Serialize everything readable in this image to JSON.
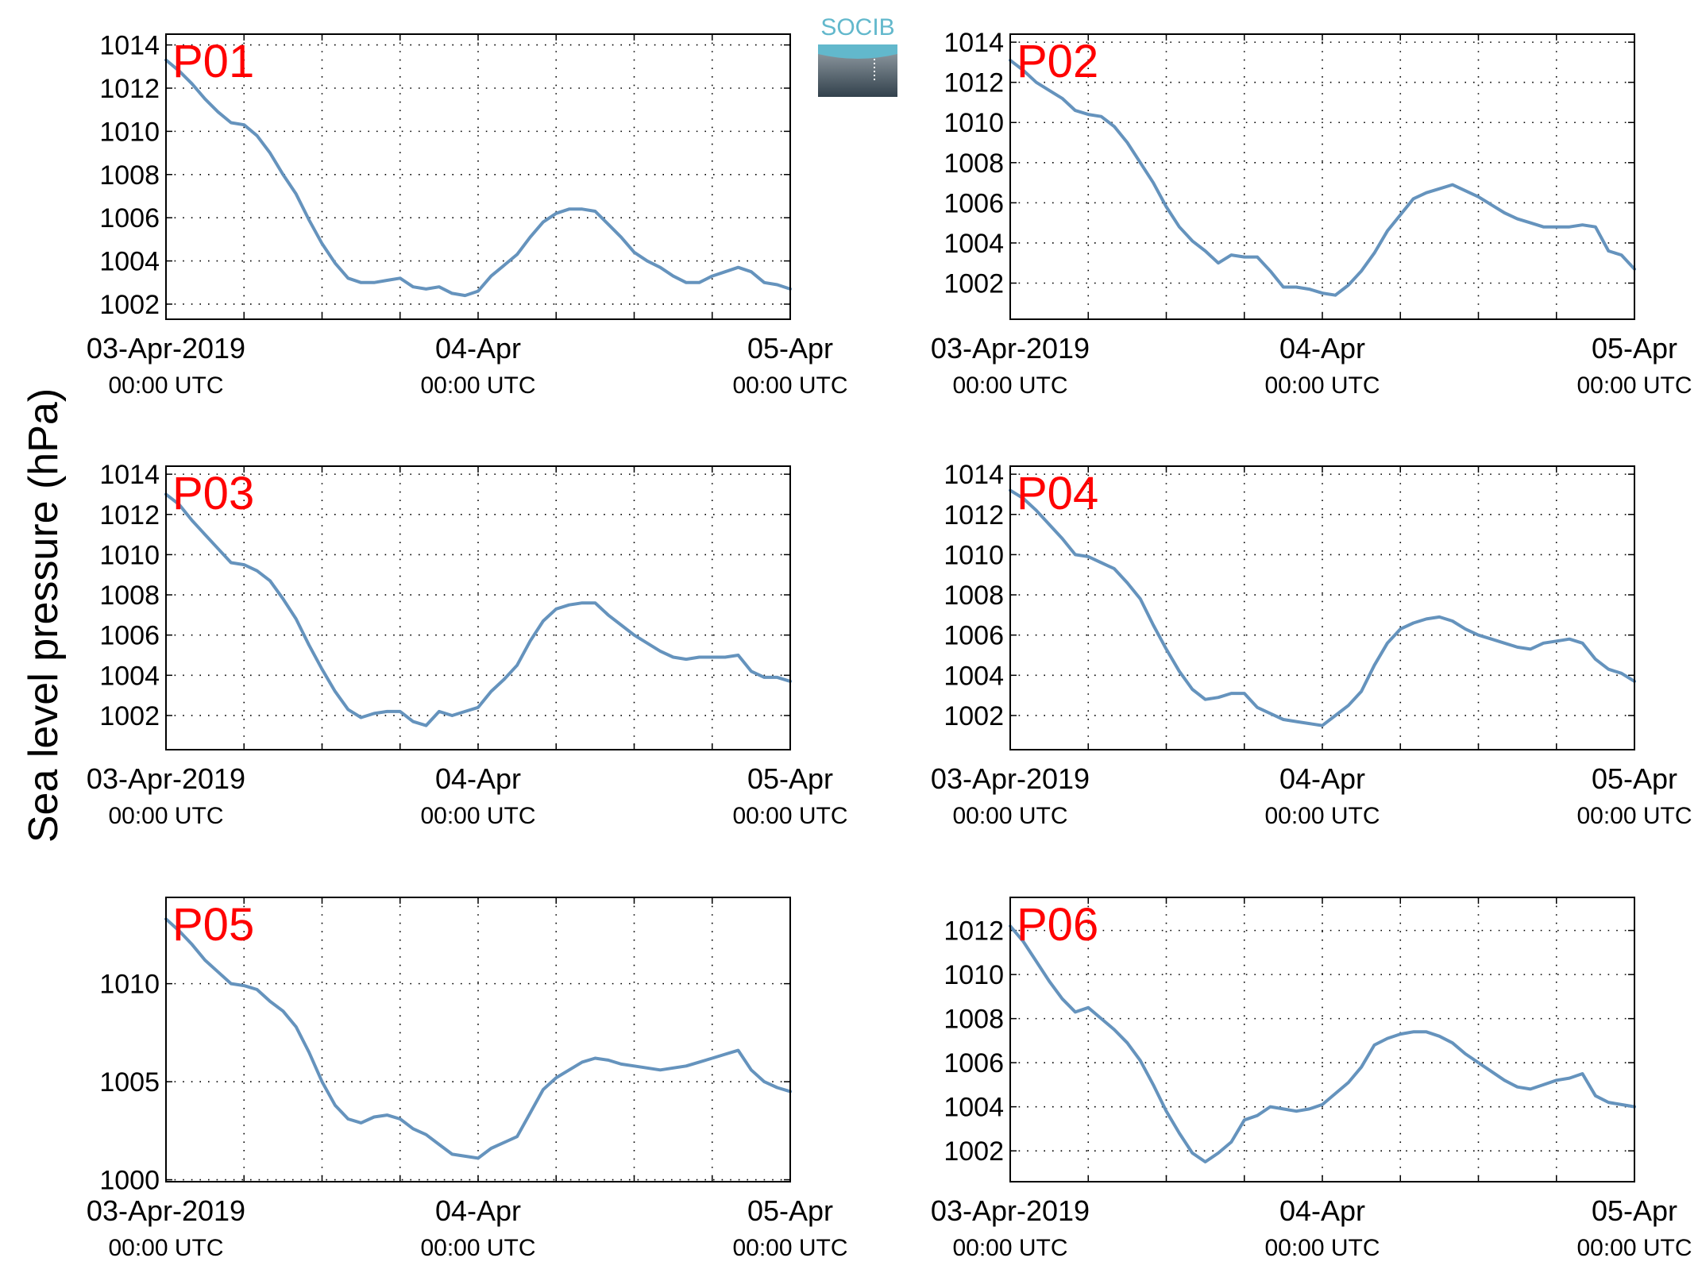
{
  "figure": {
    "ylabel": "Sea level pressure (hPa)",
    "logo_text": "SOCIB",
    "colors": {
      "line": "#6593bd",
      "panel_label": "#ff0000",
      "axis": "#000000",
      "grid": "#000000",
      "logo_top": "#62b8cc",
      "logo_bottom": "#32414c",
      "logo_text": "#62b8cc"
    }
  },
  "chart_data": [
    {
      "type": "line",
      "title": "P01",
      "ylabel": "Sea level pressure (hPa)",
      "xlim_hours": [
        0,
        48
      ],
      "x_tick_labels": [
        {
          "date": "03-Apr-2019",
          "time": "00:00 UTC"
        },
        {
          "date": "04-Apr",
          "time": "00:00 UTC"
        },
        {
          "date": "05-Apr",
          "time": "00:00 UTC"
        }
      ],
      "ylim": [
        1001.3,
        1014.5
      ],
      "yticks": [
        1002,
        1004,
        1006,
        1008,
        1010,
        1012,
        1014
      ],
      "grid": true,
      "series": [
        {
          "x": [
            0,
            1,
            2,
            3,
            4,
            5,
            6,
            7,
            8,
            9,
            10,
            11,
            12,
            13,
            14,
            15,
            16,
            17,
            18,
            19,
            20,
            21,
            22,
            23,
            24,
            25,
            26,
            27,
            28,
            29,
            30,
            31,
            32,
            33,
            34,
            35,
            36,
            37,
            38,
            39,
            40,
            41,
            42,
            43,
            44,
            45,
            46,
            47,
            48
          ],
          "values": [
            1013.3,
            1012.8,
            1012.2,
            1011.5,
            1010.9,
            1010.4,
            1010.3,
            1009.8,
            1009.0,
            1008.0,
            1007.1,
            1005.9,
            1004.8,
            1003.9,
            1003.2,
            1003.0,
            1003.0,
            1003.1,
            1003.2,
            1002.8,
            1002.7,
            1002.8,
            1002.5,
            1002.4,
            1002.6,
            1003.3,
            1003.8,
            1004.3,
            1005.1,
            1005.8,
            1006.2,
            1006.4,
            1006.4,
            1006.3,
            1005.7,
            1005.1,
            1004.4,
            1004.0,
            1003.7,
            1003.3,
            1003.0,
            1003.0,
            1003.3,
            1003.5,
            1003.7,
            1003.5,
            1003.0,
            1002.9,
            1002.7
          ]
        }
      ]
    },
    {
      "type": "line",
      "title": "P02",
      "ylabel": "Sea level pressure (hPa)",
      "xlim_hours": [
        0,
        48
      ],
      "x_tick_labels": [
        {
          "date": "03-Apr-2019",
          "time": "00:00 UTC"
        },
        {
          "date": "04-Apr",
          "time": "00:00 UTC"
        },
        {
          "date": "05-Apr",
          "time": "00:00 UTC"
        }
      ],
      "ylim": [
        1000.2,
        1014.4
      ],
      "yticks": [
        1002,
        1004,
        1006,
        1008,
        1010,
        1012,
        1014
      ],
      "grid": true,
      "series": [
        {
          "x": [
            0,
            1,
            2,
            3,
            4,
            5,
            6,
            7,
            8,
            9,
            10,
            11,
            12,
            13,
            14,
            15,
            16,
            17,
            18,
            19,
            20,
            21,
            22,
            23,
            24,
            25,
            26,
            27,
            28,
            29,
            30,
            31,
            32,
            33,
            34,
            35,
            36,
            37,
            38,
            39,
            40,
            41,
            42,
            43,
            44,
            45,
            46,
            47,
            48
          ],
          "values": [
            1013.1,
            1012.6,
            1012.0,
            1011.6,
            1011.2,
            1010.6,
            1010.4,
            1010.3,
            1009.8,
            1009.0,
            1008.0,
            1007.0,
            1005.8,
            1004.8,
            1004.1,
            1003.6,
            1003.0,
            1003.4,
            1003.3,
            1003.3,
            1002.6,
            1001.8,
            1001.8,
            1001.7,
            1001.5,
            1001.4,
            1001.9,
            1002.6,
            1003.5,
            1004.6,
            1005.4,
            1006.2,
            1006.5,
            1006.7,
            1006.9,
            1006.6,
            1006.3,
            1005.9,
            1005.5,
            1005.2,
            1005.0,
            1004.8,
            1004.8,
            1004.8,
            1004.9,
            1004.8,
            1003.6,
            1003.4,
            1002.7
          ]
        }
      ]
    },
    {
      "type": "line",
      "title": "P03",
      "ylabel": "Sea level pressure (hPa)",
      "xlim_hours": [
        0,
        48
      ],
      "x_tick_labels": [
        {
          "date": "03-Apr-2019",
          "time": "00:00 UTC"
        },
        {
          "date": "04-Apr",
          "time": "00:00 UTC"
        },
        {
          "date": "05-Apr",
          "time": "00:00 UTC"
        }
      ],
      "ylim": [
        1000.3,
        1014.4
      ],
      "yticks": [
        1002,
        1004,
        1006,
        1008,
        1010,
        1012,
        1014
      ],
      "grid": true,
      "series": [
        {
          "x": [
            0,
            1,
            2,
            3,
            4,
            5,
            6,
            7,
            8,
            9,
            10,
            11,
            12,
            13,
            14,
            15,
            16,
            17,
            18,
            19,
            20,
            21,
            22,
            23,
            24,
            25,
            26,
            27,
            28,
            29,
            30,
            31,
            32,
            33,
            34,
            35,
            36,
            37,
            38,
            39,
            40,
            41,
            42,
            43,
            44,
            45,
            46,
            47,
            48
          ],
          "values": [
            1013.0,
            1012.5,
            1011.7,
            1011.0,
            1010.3,
            1009.6,
            1009.5,
            1009.2,
            1008.7,
            1007.8,
            1006.8,
            1005.5,
            1004.3,
            1003.2,
            1002.3,
            1001.9,
            1002.1,
            1002.2,
            1002.2,
            1001.7,
            1001.5,
            1002.2,
            1002.0,
            1002.2,
            1002.4,
            1003.2,
            1003.8,
            1004.5,
            1005.7,
            1006.7,
            1007.3,
            1007.5,
            1007.6,
            1007.6,
            1007.0,
            1006.5,
            1006.0,
            1005.6,
            1005.2,
            1004.9,
            1004.8,
            1004.9,
            1004.9,
            1004.9,
            1005.0,
            1004.2,
            1003.9,
            1003.9,
            1003.7
          ]
        }
      ]
    },
    {
      "type": "line",
      "title": "P04",
      "ylabel": "Sea level pressure (hPa)",
      "xlim_hours": [
        0,
        48
      ],
      "x_tick_labels": [
        {
          "date": "03-Apr-2019",
          "time": "00:00 UTC"
        },
        {
          "date": "04-Apr",
          "time": "00:00 UTC"
        },
        {
          "date": "05-Apr",
          "time": "00:00 UTC"
        }
      ],
      "ylim": [
        1000.3,
        1014.4
      ],
      "yticks": [
        1002,
        1004,
        1006,
        1008,
        1010,
        1012,
        1014
      ],
      "grid": true,
      "series": [
        {
          "x": [
            0,
            1,
            2,
            3,
            4,
            5,
            6,
            7,
            8,
            9,
            10,
            11,
            12,
            13,
            14,
            15,
            16,
            17,
            18,
            19,
            20,
            21,
            22,
            23,
            24,
            25,
            26,
            27,
            28,
            29,
            30,
            31,
            32,
            33,
            34,
            35,
            36,
            37,
            38,
            39,
            40,
            41,
            42,
            43,
            44,
            45,
            46,
            47,
            48
          ],
          "values": [
            1013.2,
            1012.8,
            1012.2,
            1011.5,
            1010.8,
            1010.0,
            1009.9,
            1009.6,
            1009.3,
            1008.6,
            1007.8,
            1006.5,
            1005.3,
            1004.2,
            1003.3,
            1002.8,
            1002.9,
            1003.1,
            1003.1,
            1002.4,
            1002.1,
            1001.8,
            1001.7,
            1001.6,
            1001.5,
            1002.0,
            1002.5,
            1003.2,
            1004.5,
            1005.6,
            1006.3,
            1006.6,
            1006.8,
            1006.9,
            1006.7,
            1006.3,
            1006.0,
            1005.8,
            1005.6,
            1005.4,
            1005.3,
            1005.6,
            1005.7,
            1005.8,
            1005.6,
            1004.8,
            1004.3,
            1004.1,
            1003.7
          ]
        }
      ]
    },
    {
      "type": "line",
      "title": "P05",
      "ylabel": "Sea level pressure (hPa)",
      "xlim_hours": [
        0,
        48
      ],
      "x_tick_labels": [
        {
          "date": "03-Apr-2019",
          "time": "00:00 UTC"
        },
        {
          "date": "04-Apr",
          "time": "00:00 UTC"
        },
        {
          "date": "05-Apr",
          "time": "00:00 UTC"
        }
      ],
      "ylim": [
        999.9,
        1014.4
      ],
      "yticks": [
        1000,
        1005,
        1010
      ],
      "grid": true,
      "series": [
        {
          "x": [
            0,
            1,
            2,
            3,
            4,
            5,
            6,
            7,
            8,
            9,
            10,
            11,
            12,
            13,
            14,
            15,
            16,
            17,
            18,
            19,
            20,
            21,
            22,
            23,
            24,
            25,
            26,
            27,
            28,
            29,
            30,
            31,
            32,
            33,
            34,
            35,
            36,
            37,
            38,
            39,
            40,
            41,
            42,
            43,
            44,
            45,
            46,
            47,
            48
          ],
          "values": [
            1013.3,
            1012.7,
            1012.0,
            1011.2,
            1010.6,
            1010.0,
            1009.9,
            1009.7,
            1009.1,
            1008.6,
            1007.8,
            1006.5,
            1005.0,
            1003.8,
            1003.1,
            1002.9,
            1003.2,
            1003.3,
            1003.1,
            1002.6,
            1002.3,
            1001.8,
            1001.3,
            1001.2,
            1001.1,
            1001.6,
            1001.9,
            1002.2,
            1003.4,
            1004.6,
            1005.2,
            1005.6,
            1006.0,
            1006.2,
            1006.1,
            1005.9,
            1005.8,
            1005.7,
            1005.6,
            1005.7,
            1005.8,
            1006.0,
            1006.2,
            1006.4,
            1006.6,
            1005.6,
            1005.0,
            1004.7,
            1004.5
          ]
        }
      ]
    },
    {
      "type": "line",
      "title": "P06",
      "ylabel": "Sea level pressure (hPa)",
      "xlim_hours": [
        0,
        48
      ],
      "x_tick_labels": [
        {
          "date": "03-Apr-2019",
          "time": "00:00 UTC"
        },
        {
          "date": "04-Apr",
          "time": "00:00 UTC"
        },
        {
          "date": "05-Apr",
          "time": "00:00 UTC"
        }
      ],
      "ylim": [
        1000.6,
        1013.5
      ],
      "yticks": [
        1002,
        1004,
        1006,
        1008,
        1010,
        1012
      ],
      "grid": true,
      "series": [
        {
          "x": [
            0,
            1,
            2,
            3,
            4,
            5,
            6,
            7,
            8,
            9,
            10,
            11,
            12,
            13,
            14,
            15,
            16,
            17,
            18,
            19,
            20,
            21,
            22,
            23,
            24,
            25,
            26,
            27,
            28,
            29,
            30,
            31,
            32,
            33,
            34,
            35,
            36,
            37,
            38,
            39,
            40,
            41,
            42,
            43,
            44,
            45,
            46,
            47,
            48
          ],
          "values": [
            1012.2,
            1011.5,
            1010.6,
            1009.7,
            1008.9,
            1008.3,
            1008.5,
            1008.0,
            1007.5,
            1006.9,
            1006.1,
            1005.0,
            1003.8,
            1002.8,
            1001.9,
            1001.5,
            1001.9,
            1002.4,
            1003.4,
            1003.6,
            1004.0,
            1003.9,
            1003.8,
            1003.9,
            1004.1,
            1004.6,
            1005.1,
            1005.8,
            1006.8,
            1007.1,
            1007.3,
            1007.4,
            1007.4,
            1007.2,
            1006.9,
            1006.4,
            1006.0,
            1005.6,
            1005.2,
            1004.9,
            1004.8,
            1005.0,
            1005.2,
            1005.3,
            1005.5,
            1004.5,
            1004.2,
            1004.1,
            1004.0
          ]
        }
      ]
    }
  ]
}
